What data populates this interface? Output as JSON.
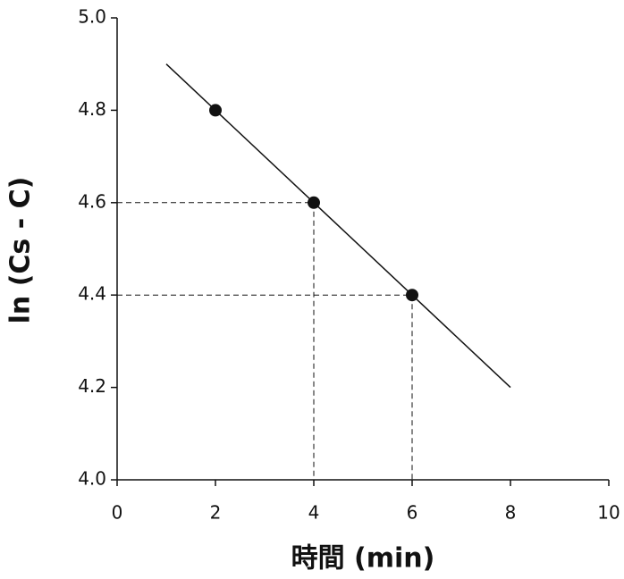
{
  "chart_data": {
    "type": "scatter",
    "xlabel": "時間 (min)",
    "ylabel": "ln (Cs - C)",
    "xlim": [
      0,
      10
    ],
    "xticks": [
      0,
      2,
      4,
      6,
      8,
      10
    ],
    "ylim": [
      4,
      5
    ],
    "yticks": [
      {
        "value": 4,
        "label": "4.0"
      },
      4.2,
      4.4,
      4.6,
      4.8,
      {
        "value": 5,
        "label": "5.0"
      }
    ],
    "series": [
      {
        "color": "#111111",
        "x": [
          2,
          4,
          6
        ],
        "values": [
          4.8,
          4.6,
          4.4
        ]
      }
    ],
    "fit_line": {
      "color": "#111111",
      "x": [
        1,
        8
      ],
      "values": [
        4.9,
        4.2
      ]
    },
    "guides": [
      {
        "x": 4,
        "y": 4.6
      },
      {
        "x": 6,
        "y": 4.4
      }
    ]
  }
}
